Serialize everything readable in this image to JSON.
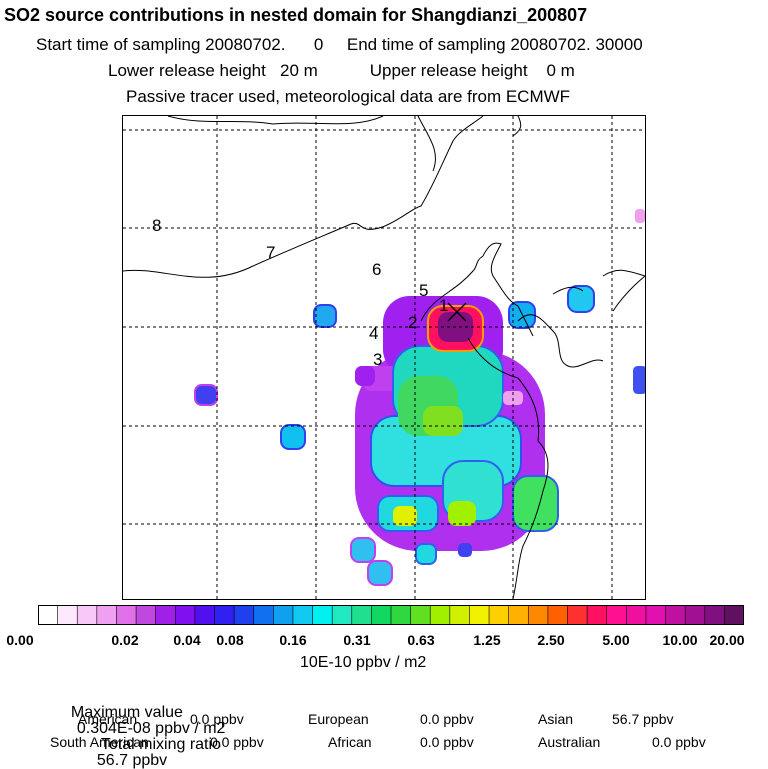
{
  "header": {
    "title": "SO2 source contributions in nested domain for Shangdianzi_200807",
    "line1": "Start time of sampling 20080702.      0     End time of sampling 20080702. 30000",
    "line2": "Lower release height   20 m           Upper release height    0 m",
    "line3": "Passive tracer used, meteorological data are from ECMWF"
  },
  "chart_data": {
    "type": "heatmap",
    "title": "SO2 source contributions in nested domain for Shangdianzi_200807",
    "colorbar": {
      "tick_labels": [
        "0.00",
        "0.02",
        "0.04",
        "0.08",
        "0.16",
        "0.31",
        "0.63",
        "1.25",
        "2.50",
        "5.00",
        "10.00",
        "20.00"
      ],
      "unit": "10E-10 ppbv / m2",
      "colors": [
        "#ffffff",
        "#fde8fd",
        "#f8c8f8",
        "#f0a0f0",
        "#e070e8",
        "#c048e0",
        "#a020e8",
        "#8010f0",
        "#5010f0",
        "#3020f0",
        "#2040f0",
        "#1070f0",
        "#10a0f0",
        "#10c8f0",
        "#00f0f0",
        "#20e8c0",
        "#20e090",
        "#10d860",
        "#30d840",
        "#60e020",
        "#a0f000",
        "#d0f000",
        "#f0f000",
        "#ffd000",
        "#ffb000",
        "#ff8800",
        "#ff6000",
        "#ff3030",
        "#ff1060",
        "#ff1090",
        "#f010a0",
        "#e010b0",
        "#c010a0",
        "#a01090",
        "#801080",
        "#601060"
      ],
      "range": [
        0,
        20
      ]
    },
    "track_labels": [
      {
        "label": "1"
      },
      {
        "label": "2"
      },
      {
        "label": "3"
      },
      {
        "label": "4"
      },
      {
        "label": "5"
      },
      {
        "label": "6"
      },
      {
        "label": "7"
      },
      {
        "label": "8"
      }
    ],
    "receptor": "Shangdianzi",
    "max_value": "0.304E-08 ppbv / m2",
    "total_mixing_ratio": "56.7 ppbv"
  },
  "summary": {
    "max_label": "Maximum value",
    "max_value": "0.304E-08 ppbv / m2",
    "total_label": "Total mixing ratio",
    "total_value": "56.7 ppbv",
    "regions": [
      {
        "name": "American",
        "value": "0.0 ppbv"
      },
      {
        "name": "European",
        "value": "0.0 ppbv"
      },
      {
        "name": "Asian",
        "value": "56.7 ppbv"
      },
      {
        "name": "South American",
        "value": "0.0 ppbv"
      },
      {
        "name": "African",
        "value": "0.0 ppbv"
      },
      {
        "name": "Australian",
        "value": "0.0 ppbv"
      }
    ]
  }
}
